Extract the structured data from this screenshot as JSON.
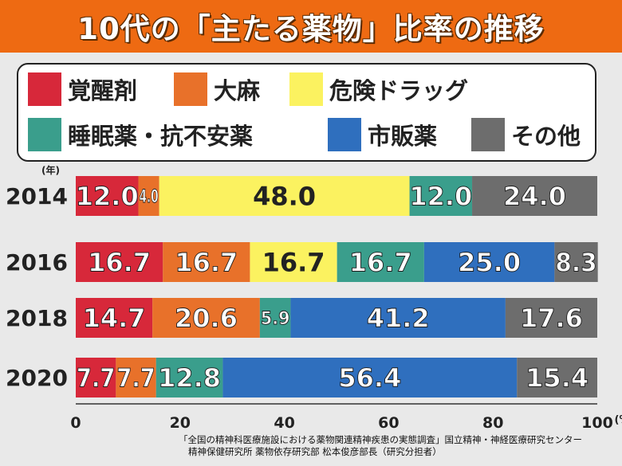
{
  "title": "10代の「主たる薬物」比率の推移",
  "colors": {
    "background": "#e9e9e9",
    "title_bar": "#ee6a12",
    "title_text": "#ffffff"
  },
  "chart_data": {
    "type": "bar",
    "orientation": "horizontal",
    "stacked": true,
    "title": "10代の「主たる薬物」比率の推移",
    "ylabel": "(年)",
    "xlabel": "(%)",
    "xlim": [
      0,
      100
    ],
    "xticks": [
      "0",
      "20",
      "40",
      "60",
      "80",
      "100"
    ],
    "categories": [
      "2014",
      "2016",
      "2018",
      "2020"
    ],
    "legend_position": "top",
    "series": [
      {
        "name": "覚醒剤",
        "color": "#d7283a",
        "values": [
          12.0,
          16.7,
          14.7,
          7.7
        ],
        "labels": [
          "12.0",
          "16.7",
          "14.7",
          "7.7"
        ]
      },
      {
        "name": "大麻",
        "color": "#e8712a",
        "values": [
          4.0,
          16.7,
          20.6,
          7.7
        ],
        "labels": [
          "4.0",
          "16.7",
          "20.6",
          "7.7"
        ]
      },
      {
        "name": "危険ドラッグ",
        "color": "#fbf260",
        "values": [
          48.0,
          16.7,
          0,
          0
        ],
        "labels": [
          "48.0",
          "16.7",
          "",
          ""
        ]
      },
      {
        "name": "睡眠薬・抗不安薬",
        "color": "#3a9e8c",
        "values": [
          12.0,
          16.7,
          5.9,
          12.8
        ],
        "labels": [
          "12.0",
          "16.7",
          "5.9",
          "12.8"
        ]
      },
      {
        "name": "市販薬",
        "color": "#2f6fbe",
        "values": [
          0,
          25.0,
          41.2,
          56.4
        ],
        "labels": [
          "",
          "25.0",
          "41.2",
          "56.4"
        ]
      },
      {
        "name": "その他",
        "color": "#6d6d6d",
        "values": [
          24.0,
          8.3,
          17.6,
          15.4
        ],
        "labels": [
          "24.0",
          "8.3",
          "17.6",
          "15.4"
        ]
      }
    ]
  },
  "source": {
    "line1": "「全国の精神科医療施設における薬物関連精神疾患の実態調査」国立精神・神経医療研究センター",
    "line2": "精神保健研究所 薬物依存研究部 松本俊彦部長（研究分担者）"
  }
}
